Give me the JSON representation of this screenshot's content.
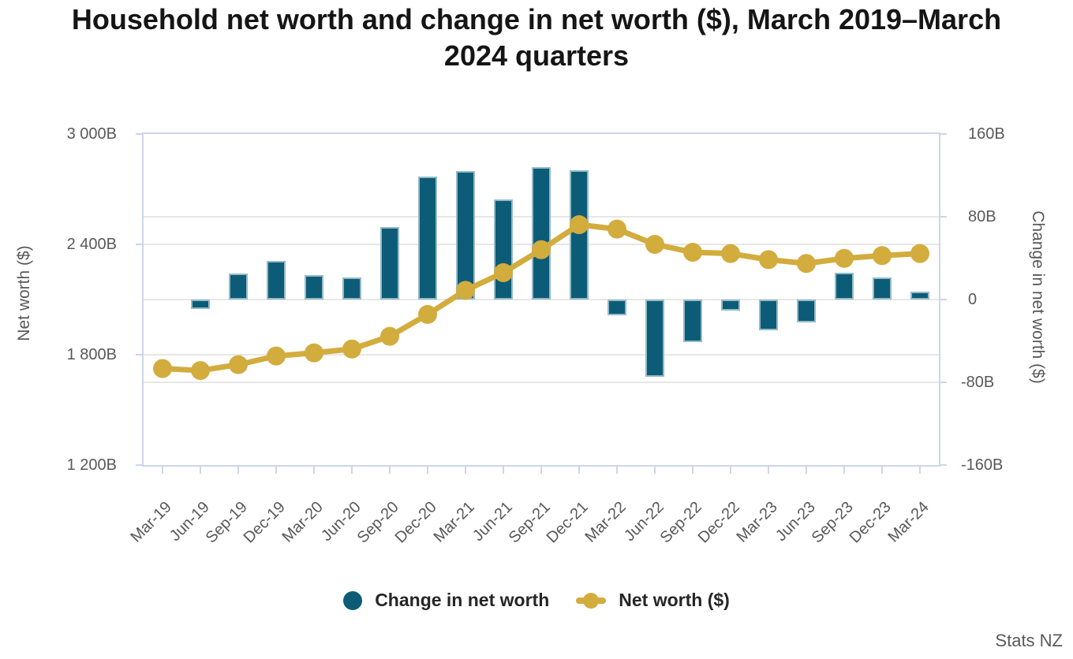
{
  "title": {
    "text": "Household net worth and change in net worth ($), March 2019–March 2024 quarters",
    "lines": [
      "Household net worth and change in net worth ($), March 2019–March",
      "2024 quarters"
    ]
  },
  "source": "Stats NZ",
  "chart_data": {
    "type": "combo",
    "title": "Household net worth and change in net worth ($), March 2019–March 2024 quarters",
    "grid": true,
    "legend_position": "bottom",
    "categories": [
      "Mar-19",
      "Jun-19",
      "Sep-19",
      "Dec-19",
      "Mar-20",
      "Jun-20",
      "Sep-20",
      "Dec-20",
      "Mar-21",
      "Jun-21",
      "Sep-21",
      "Dec-21",
      "Mar-22",
      "Jun-22",
      "Sep-22",
      "Dec-22",
      "Mar-23",
      "Jun-23",
      "Sep-23",
      "Dec-23",
      "Mar-24"
    ],
    "series": [
      {
        "name": "Change in net worth",
        "type": "bar",
        "axis": "right",
        "color": "#0d5c77",
        "values": [
          null,
          -9,
          25,
          37,
          24,
          21,
          70,
          119,
          124,
          97,
          128,
          125,
          -15,
          -75,
          -41,
          -11,
          -30,
          -22,
          26,
          21,
          8
        ]
      },
      {
        "name": "Net worth ($)",
        "type": "line",
        "axis": "left",
        "color": "#d3ac3e",
        "values": [
          1725,
          1714,
          1746,
          1793,
          1810,
          1831,
          1900,
          2019,
          2150,
          2246,
          2371,
          2507,
          2483,
          2400,
          2357,
          2350,
          2317,
          2296,
          2324,
          2339,
          2350
        ]
      }
    ],
    "left_axis": {
      "label": "Net worth ($)",
      "min": 1200,
      "max": 3000,
      "ticks": [
        {
          "value": 3000,
          "label": "3 000B"
        },
        {
          "value": 2400,
          "label": "2 400B"
        },
        {
          "value": 1800,
          "label": "1 800B"
        },
        {
          "value": 1200,
          "label": "1 200B"
        }
      ]
    },
    "right_axis": {
      "label": "Change in net worth ($)",
      "min": -160,
      "max": 160,
      "ticks": [
        {
          "value": 160,
          "label": "160B"
        },
        {
          "value": 80,
          "label": "80B"
        },
        {
          "value": 0,
          "label": "0"
        },
        {
          "value": -80,
          "label": "-80B"
        },
        {
          "value": -160,
          "label": "-160B"
        }
      ]
    }
  }
}
